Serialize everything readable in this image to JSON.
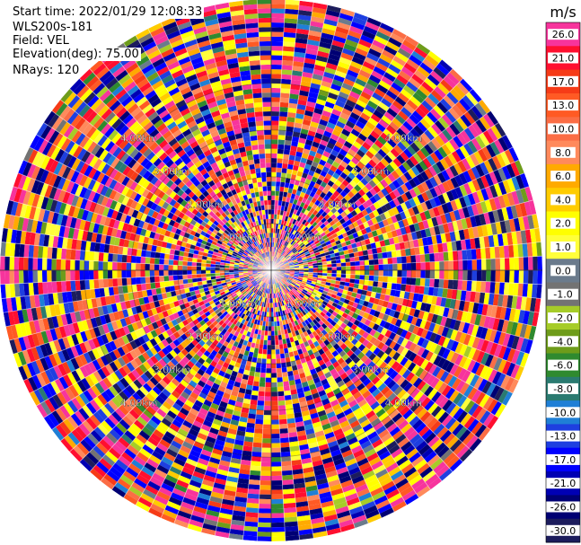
{
  "info": {
    "start_time": "Start time: 2022/01/29 12:08:33",
    "instrument": "WLS200s-181",
    "field": "Field: VEL",
    "elevation": "Elevation(deg): 75.00",
    "nrays": "NRays: 120"
  },
  "colorbar": {
    "unit": "m/s",
    "entries": [
      {
        "label": "26.0",
        "color": "#f7349c"
      },
      {
        "label": "21.0",
        "color": "#ff0f2f"
      },
      {
        "label": "17.0",
        "color": "#f63b17"
      },
      {
        "label": "13.0",
        "color": "#ff5a24"
      },
      {
        "label": "10.0",
        "color": "#fb6d45"
      },
      {
        "label": "8.0",
        "color": "#ff8a5c"
      },
      {
        "label": "6.0",
        "color": "#ffaa00"
      },
      {
        "label": "4.0",
        "color": "#ffcc00"
      },
      {
        "label": "2.0",
        "color": "#ffff00"
      },
      {
        "label": "1.0",
        "color": "#ffff3a"
      },
      {
        "label": "0.0",
        "color": "#6b7b8c"
      },
      {
        "label": "-1.0",
        "color": "#737373"
      },
      {
        "label": "-2.0",
        "color": "#a6cc28"
      },
      {
        "label": "-4.0",
        "color": "#6e9c1a"
      },
      {
        "label": "-6.0",
        "color": "#2f8a2f"
      },
      {
        "label": "-8.0",
        "color": "#2a7a70"
      },
      {
        "label": "-10.0",
        "color": "#1f7fd6"
      },
      {
        "label": "-13.0",
        "color": "#1e3fe0"
      },
      {
        "label": "-17.0",
        "color": "#0000ff"
      },
      {
        "label": "-21.0",
        "color": "#0000b3"
      },
      {
        "label": "-26.0",
        "color": "#000073"
      },
      {
        "label": "-30.0",
        "color": "#1c1c5c"
      }
    ]
  },
  "chart_data": {
    "type": "heatmap",
    "projection": "polar (PPI)",
    "field": "VEL",
    "units": "m/s",
    "nrays": 120,
    "range_ring_labels": [
      "1.00km",
      "2.00km",
      "3.00km",
      "4.00km"
    ],
    "range_rings_km": [
      1,
      2,
      3,
      4
    ],
    "max_range_km": 5.8,
    "colorbar_ticks": [
      26.0,
      21.0,
      17.0,
      13.0,
      10.0,
      8.0,
      6.0,
      4.0,
      2.0,
      1.0,
      0.0,
      -1.0,
      -2.0,
      -4.0,
      -6.0,
      -8.0,
      -10.0,
      -13.0,
      -17.0,
      -21.0,
      -26.0,
      -30.0
    ],
    "value_range": [
      -30.0,
      26.0
    ],
    "pattern": "noise-dominated; velocities span full colorbar range in every gate"
  }
}
